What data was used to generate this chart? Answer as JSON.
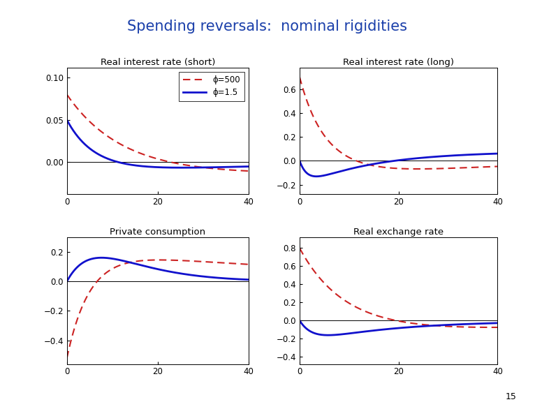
{
  "title": "Spending reversals:  nominal rigidities",
  "title_color": "#1a3faa",
  "page_number": "15",
  "subplots": [
    {
      "title": "Real interest rate (short)",
      "ylim": [
        -0.038,
        0.112
      ],
      "yticks": [
        0,
        0.05,
        0.1
      ],
      "xlim": [
        0,
        40
      ],
      "xticks": [
        0,
        20,
        40
      ],
      "hline": 0
    },
    {
      "title": "Real interest rate (long)",
      "ylim": [
        -0.28,
        0.78
      ],
      "yticks": [
        -0.2,
        0,
        0.2,
        0.4,
        0.6
      ],
      "xlim": [
        0,
        40
      ],
      "xticks": [
        0,
        20,
        40
      ],
      "hline": 0
    },
    {
      "title": "Private consumption",
      "ylim": [
        -0.56,
        0.3
      ],
      "yticks": [
        -0.4,
        -0.2,
        0,
        0.2
      ],
      "xlim": [
        0,
        40
      ],
      "xticks": [
        0,
        20,
        40
      ],
      "hline": 0
    },
    {
      "title": "Real exchange rate",
      "ylim": [
        -0.48,
        0.92
      ],
      "yticks": [
        -0.4,
        -0.2,
        0,
        0.2,
        0.4,
        0.6,
        0.8
      ],
      "xlim": [
        0,
        40
      ],
      "xticks": [
        0,
        20,
        40
      ],
      "hline": 0
    }
  ],
  "legend_labels": [
    "ϕ=500",
    "ϕ=1.5"
  ],
  "phi500_color": "#cc2222",
  "phi15_color": "#1111cc",
  "background_color": "#ffffff",
  "header_line_color": "#4f81bd"
}
